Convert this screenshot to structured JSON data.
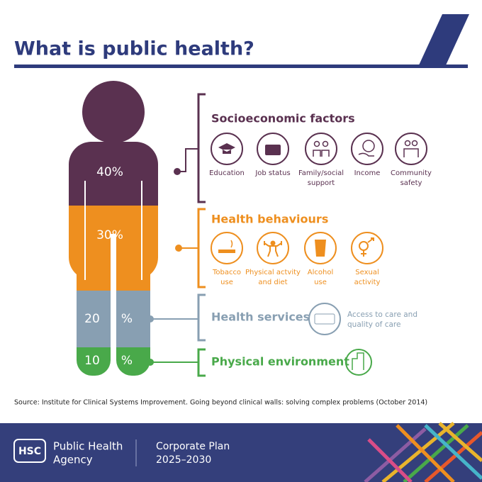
{
  "header": {
    "title": "What is public health?"
  },
  "figure": {
    "segments": [
      {
        "text": "40%"
      },
      {
        "text": "30%"
      },
      {
        "left": "20",
        "right": "%"
      },
      {
        "left": "10",
        "right": "%"
      }
    ]
  },
  "groups": [
    {
      "title": "Socioeconomic factors",
      "items": [
        {
          "lines": [
            "Education"
          ]
        },
        {
          "lines": [
            "Job status"
          ]
        },
        {
          "lines": [
            "Family/social",
            "support"
          ]
        },
        {
          "lines": [
            "Income"
          ]
        },
        {
          "lines": [
            "Community",
            "safety"
          ]
        }
      ]
    },
    {
      "title": "Health behaviours",
      "items": [
        {
          "lines": [
            "Tobacco",
            "use"
          ]
        },
        {
          "lines": [
            "Physical actvity",
            "and diet"
          ]
        },
        {
          "lines": [
            "Alcohol",
            "use"
          ]
        },
        {
          "lines": [
            "Sexual",
            "activity"
          ]
        }
      ]
    },
    {
      "title": "Health services",
      "items": [
        {
          "lines": [
            "Access to care and",
            "quality of care"
          ]
        }
      ]
    },
    {
      "title": "Physical environment",
      "items": []
    }
  ],
  "source": "Source: Institute for Clinical Systems Improvement. Going beyond clinical walls: solving complex problems (October 2014)",
  "footer": {
    "logo": "HSC",
    "org": [
      "Public Health",
      "Agency"
    ],
    "plan": [
      "Corporate Plan",
      "2025–2030"
    ]
  }
}
